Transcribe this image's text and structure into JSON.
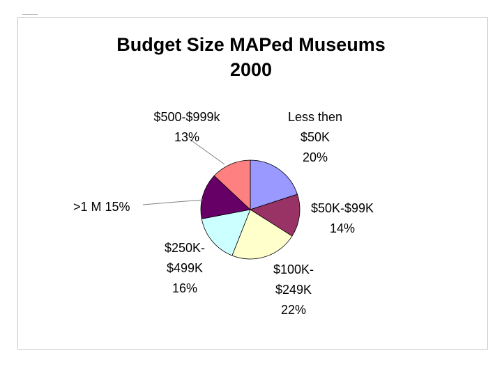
{
  "chart_data": {
    "type": "pie",
    "title_lines": [
      "Budget Size MAPed Museums",
      "2000"
    ],
    "slices": [
      {
        "name": "Less then $50K",
        "value": 20,
        "color": "#9999ff",
        "label_lines": [
          "Less then",
          "$50K",
          "20%"
        ]
      },
      {
        "name": "$50K-$99K",
        "value": 14,
        "color": "#993366",
        "label_lines": [
          "$50K-$99K",
          "14%"
        ]
      },
      {
        "name": "$100K-$249K",
        "value": 22,
        "color": "#ffffcc",
        "label_lines": [
          "$100K-",
          "$249K",
          "22%"
        ]
      },
      {
        "name": "$250K-$499K",
        "value": 16,
        "color": "#ccffff",
        "label_lines": [
          "$250K-",
          "$499K",
          "16%"
        ]
      },
      {
        "name": ">1 M",
        "value": 15,
        "color": "#660066",
        "label_lines": [
          ">1 M 15%"
        ]
      },
      {
        "name": "$500-$999k",
        "value": 13,
        "color": "#ff8080",
        "label_lines": [
          "$500-$999k",
          "13%"
        ]
      }
    ]
  }
}
